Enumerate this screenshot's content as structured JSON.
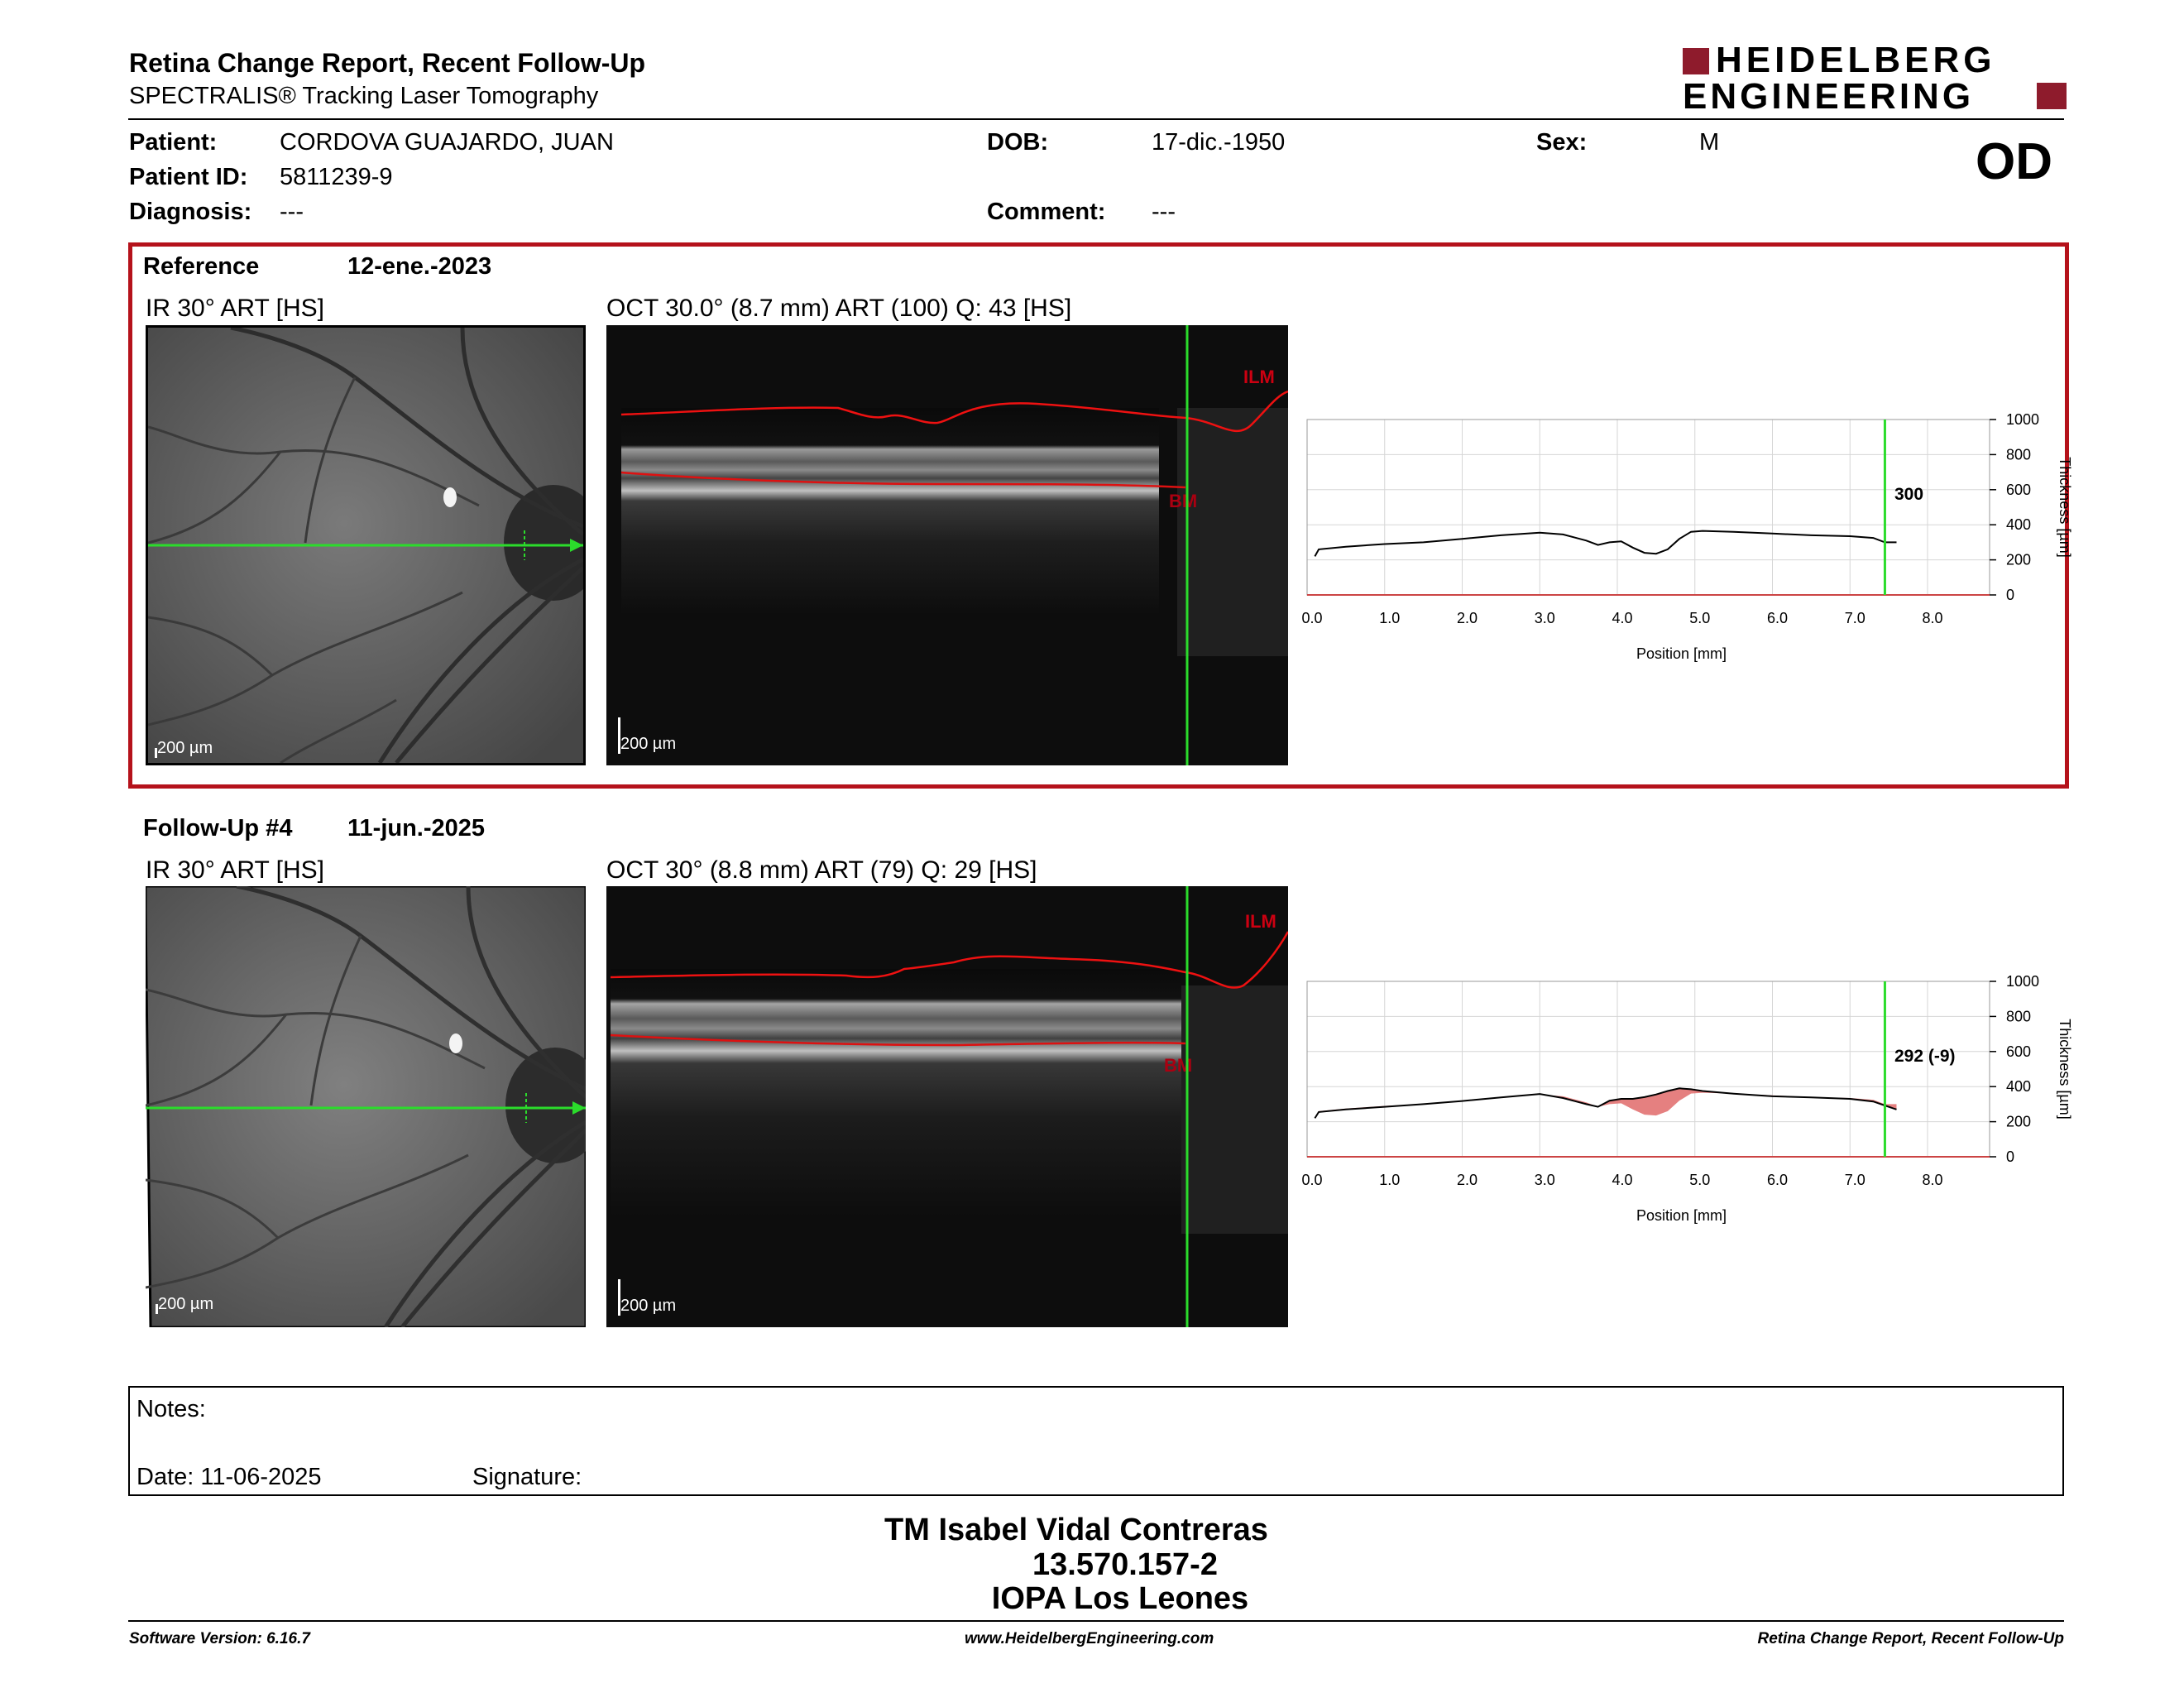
{
  "report": {
    "title": "Retina Change Report, Recent Follow-Up",
    "subtitle": "SPECTRALIS® Tracking Laser Tomography",
    "logo_line1": "HEIDELBERG",
    "logo_line2": "ENGINEERING",
    "eye": "OD"
  },
  "patient": {
    "patient_label": "Patient:",
    "patient_value": "CORDOVA GUAJARDO, JUAN",
    "id_label": "Patient ID:",
    "id_value": "5811239-9",
    "diagnosis_label": "Diagnosis:",
    "diagnosis_value": "---",
    "dob_label": "DOB:",
    "dob_value": "17-dic.-1950",
    "comment_label": "Comment:",
    "comment_value": "---",
    "sex_label": "Sex:",
    "sex_value": "M"
  },
  "reference": {
    "label": "Reference",
    "date": "12-ene.-2023",
    "ir_title": "IR 30° ART [HS]",
    "oct_title": "OCT 30.0° (8.7 mm) ART (100) Q: 43 [HS]",
    "scale_ir": "200 µm",
    "scale_oct": "200 µm",
    "ilm": "ILM",
    "bm": "BM",
    "cursor_value": "300"
  },
  "followup": {
    "label": "Follow-Up #4",
    "date": "11-jun.-2025",
    "ir_title": "IR 30° ART [HS]",
    "oct_title": "OCT 30° (8.8 mm) ART (79) Q: 29 [HS]",
    "scale_ir": "200 µm",
    "scale_oct": "200 µm",
    "ilm": "ILM",
    "bm": "BM",
    "cursor_value": "292 (-9)"
  },
  "chart_data": [
    {
      "type": "line",
      "xlabel": "Position [mm]",
      "ylabel": "Thickness [µm]",
      "xlim": [
        0,
        8.8
      ],
      "ylim": [
        0,
        1000
      ],
      "x_ticks": [
        "0.0",
        "1.0",
        "2.0",
        "3.0",
        "4.0",
        "5.0",
        "6.0",
        "7.0",
        "8.0"
      ],
      "y_ticks": [
        "0",
        "200",
        "400",
        "600",
        "800",
        "1000"
      ],
      "cursor_x": 7.45,
      "series": [
        {
          "x": [
            0.1,
            0.15,
            0.5,
            1.0,
            1.5,
            2.0,
            2.5,
            3.0,
            3.3,
            3.6,
            3.75,
            3.9,
            4.05,
            4.2,
            4.35,
            4.5,
            4.65,
            4.8,
            4.95,
            5.1,
            5.5,
            6.0,
            6.5,
            7.0,
            7.3,
            7.45,
            7.6
          ],
          "y": [
            220,
            260,
            275,
            290,
            300,
            320,
            340,
            355,
            345,
            310,
            285,
            300,
            305,
            270,
            240,
            235,
            260,
            320,
            360,
            365,
            360,
            350,
            340,
            335,
            325,
            300,
            300
          ]
        }
      ]
    },
    {
      "type": "line",
      "xlabel": "Position [mm]",
      "ylabel": "Thickness [µm]",
      "xlim": [
        0,
        8.8
      ],
      "ylim": [
        0,
        1000
      ],
      "x_ticks": [
        "0.0",
        "1.0",
        "2.0",
        "3.0",
        "4.0",
        "5.0",
        "6.0",
        "7.0",
        "8.0"
      ],
      "y_ticks": [
        "0",
        "200",
        "400",
        "600",
        "800",
        "1000"
      ],
      "cursor_x": 7.45,
      "series": [
        {
          "x": [
            0.1,
            0.15,
            0.5,
            1.0,
            1.5,
            2.0,
            2.5,
            3.0,
            3.3,
            3.6,
            3.75,
            3.9,
            4.05,
            4.2,
            4.35,
            4.5,
            4.65,
            4.8,
            4.95,
            5.1,
            5.5,
            6.0,
            6.5,
            7.0,
            7.3,
            7.45,
            7.6
          ],
          "y": [
            220,
            255,
            270,
            285,
            300,
            318,
            338,
            358,
            335,
            300,
            285,
            320,
            330,
            330,
            340,
            355,
            375,
            390,
            385,
            375,
            360,
            345,
            338,
            330,
            315,
            292,
            270
          ]
        }
      ]
    }
  ],
  "notes": {
    "notes_label": "Notes:",
    "date_label": "Date: 11-06-2025",
    "signature_label": "Signature:"
  },
  "signer": {
    "name": "TM Isabel Vidal Contreras",
    "id": "13.570.157-2",
    "org": "IOPA Los Leones"
  },
  "footer": {
    "software": "Software Version: 6.16.7",
    "website": "www.HeidelbergEngineering.com",
    "report_name": "Retina Change Report, Recent Follow-Up"
  }
}
